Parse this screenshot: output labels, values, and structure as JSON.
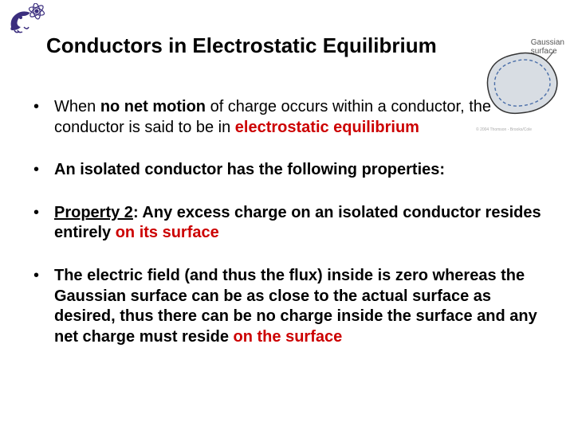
{
  "title": "Conductors in Electrostatic Equilibrium",
  "logo": {
    "color": "#3b2e7e",
    "atom_color": "#3b2e7e"
  },
  "diagram": {
    "label_line1": "Gaussian",
    "label_line2": "surface",
    "fill": "#d8dde3",
    "outer_stroke": "#333333",
    "inner_stroke": "#4a6ea8",
    "dash": "4,3",
    "copyright": "© 2004 Thomson - Brooks/Cole"
  },
  "bullets": [
    {
      "parts": [
        {
          "t": "When "
        },
        {
          "t": "no net motion",
          "style": "bold"
        },
        {
          "t": " of charge occurs within a conductor, the conductor is said to be in "
        },
        {
          "t": "electrostatic equilibrium",
          "style": "red"
        }
      ]
    },
    {
      "parts": [
        {
          "t": "An isolated conductor has the following properties:",
          "style": "bold"
        }
      ]
    },
    {
      "parts": [
        {
          "t": "Property 2",
          "style": "bold-underline"
        },
        {
          "t": ": Any excess charge on an isolated conductor resides entirely ",
          "style": "bold"
        },
        {
          "t": "on its surface",
          "style": "red"
        }
      ]
    },
    {
      "parts": [
        {
          "t": "The electric field (and thus the flux) inside is zero whereas the Gaussian surface can be as close to the actual surface as desired, thus there can be no charge inside the surface and any net charge must reside ",
          "style": "bold"
        },
        {
          "t": "on the surface",
          "style": "red"
        }
      ]
    }
  ],
  "colors": {
    "text": "#000000",
    "red": "#cc0000",
    "logo": "#3b2e7e",
    "background": "#ffffff"
  },
  "fonts": {
    "title_size": 26,
    "body_size": 20
  }
}
